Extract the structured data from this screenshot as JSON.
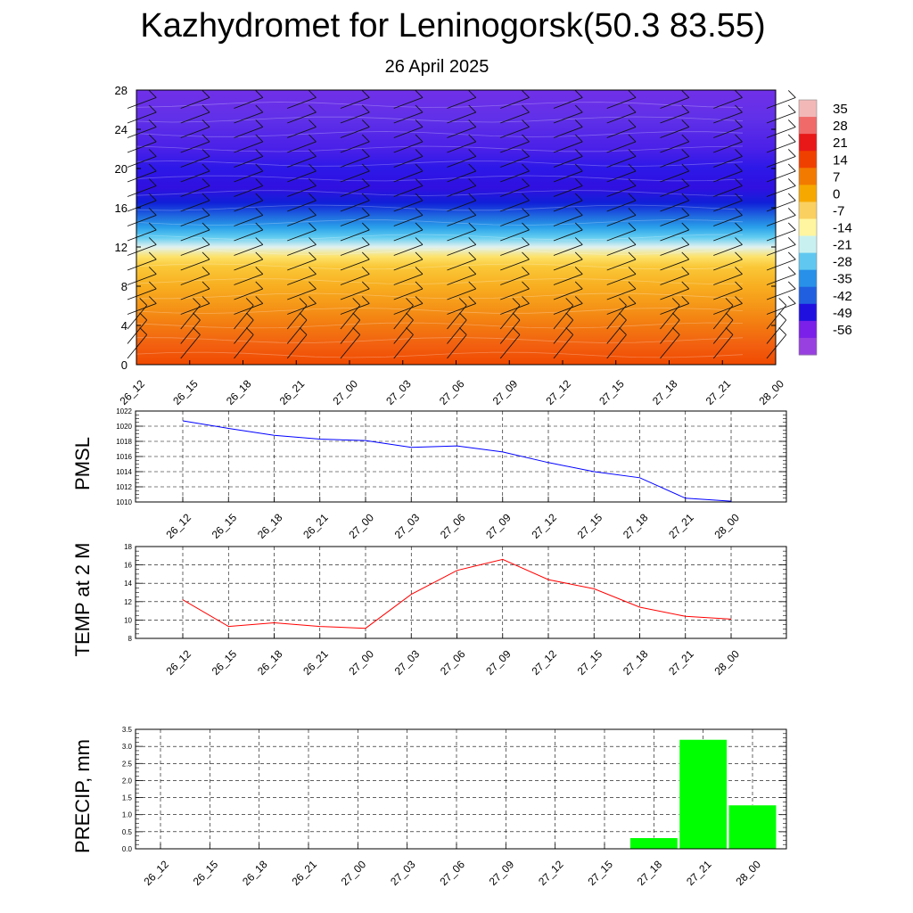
{
  "header": {
    "title": "Kazhydromet for Leninogorsk(50.3 83.55)",
    "subtitle": "26 April 2025"
  },
  "chart_data": [
    {
      "type": "heatmap",
      "x_ticks": [
        "26_12",
        "26_15",
        "26_18",
        "26_21",
        "27_00",
        "27_03",
        "27_06",
        "27_09",
        "27_12",
        "27_15",
        "27_18",
        "27_21",
        "28_00"
      ],
      "y_ticks": [
        0,
        4,
        8,
        12,
        16,
        20,
        24,
        28
      ],
      "ylim": [
        0,
        28
      ],
      "colorbar_labels": [
        "35",
        "28",
        "21",
        "14",
        "7",
        "0",
        "-7",
        "-14",
        "-21",
        "-28",
        "-35",
        "-42",
        "-49",
        "-56"
      ],
      "colorbar_colors": [
        "#f2b8b8",
        "#f06a6a",
        "#e81818",
        "#f04000",
        "#f27a00",
        "#f7a800",
        "#fad060",
        "#fff5a0",
        "#c8f0f0",
        "#60c8f0",
        "#2890e8",
        "#2060e0",
        "#2010e0",
        "#7a20e8",
        "#9840e0"
      ],
      "vertical_profile": [
        {
          "height": 0,
          "color": "#f04a00"
        },
        {
          "height": 2,
          "color": "#f26010"
        },
        {
          "height": 4,
          "color": "#f37a10"
        },
        {
          "height": 6,
          "color": "#f59618"
        },
        {
          "height": 8,
          "color": "#f8ae20"
        },
        {
          "height": 10,
          "color": "#fac838"
        },
        {
          "height": 11,
          "color": "#fde26a"
        },
        {
          "height": 12,
          "color": "#e0f2f0"
        },
        {
          "height": 13,
          "color": "#60ccf0"
        },
        {
          "height": 14,
          "color": "#2aa0ea"
        },
        {
          "height": 15,
          "color": "#2070e0"
        },
        {
          "height": 16.5,
          "color": "#1020d8"
        },
        {
          "height": 18,
          "color": "#3010e0"
        },
        {
          "height": 20,
          "color": "#2c18e8"
        },
        {
          "height": 22,
          "color": "#4a20e8"
        },
        {
          "height": 25,
          "color": "#6030e8"
        },
        {
          "height": 28,
          "color": "#7030e8"
        }
      ],
      "wind_barbs": true
    },
    {
      "type": "line",
      "ylabel": "PMSL",
      "ylim": [
        1010,
        1022
      ],
      "y_ticks": [
        1010,
        1012,
        1014,
        1016,
        1018,
        1020,
        1022
      ],
      "x_ticks": [
        "26_12",
        "26_15",
        "26_18",
        "26_21",
        "27_00",
        "27_03",
        "27_06",
        "27_09",
        "27_12",
        "27_15",
        "27_18",
        "27_21",
        "28_00"
      ],
      "series": [
        {
          "color": "#0000ff",
          "values": [
            1020.7,
            1019.7,
            1018.8,
            1018.3,
            1018.1,
            1017.2,
            1017.4,
            1016.6,
            1015.2,
            1014.0,
            1013.2,
            1010.5,
            1010.1
          ]
        }
      ],
      "grid": true
    },
    {
      "type": "line",
      "ylabel": "TEMP at 2 M",
      "ylim": [
        8,
        18
      ],
      "y_ticks": [
        8,
        10,
        12,
        14,
        16,
        18
      ],
      "x_ticks": [
        "26_12",
        "26_15",
        "26_18",
        "26_21",
        "27_00",
        "27_03",
        "27_06",
        "27_09",
        "27_12",
        "27_15",
        "27_18",
        "27_21",
        "28_00"
      ],
      "series": [
        {
          "color": "#ff0000",
          "values": [
            12.2,
            9.3,
            9.7,
            9.3,
            9.1,
            12.8,
            15.4,
            16.6,
            14.4,
            13.4,
            11.4,
            10.4,
            10.1
          ]
        }
      ],
      "grid": true
    },
    {
      "type": "bar",
      "ylabel": "PRECIP, mm",
      "ylim": [
        0,
        3.5
      ],
      "y_ticks": [
        "0.0",
        "0.5",
        "1.0",
        "1.5",
        "2.0",
        "2.5",
        "3.0",
        "3.5"
      ],
      "categories": [
        "26_12",
        "26_15",
        "26_18",
        "26_21",
        "27_00",
        "27_03",
        "27_06",
        "27_09",
        "27_12",
        "27_15",
        "27_18",
        "27_21",
        "28_00"
      ],
      "values": [
        0,
        0,
        0,
        0,
        0,
        0,
        0,
        0,
        0,
        0,
        0.32,
        3.2,
        1.28
      ],
      "color": "#00ff00",
      "grid": true
    }
  ]
}
